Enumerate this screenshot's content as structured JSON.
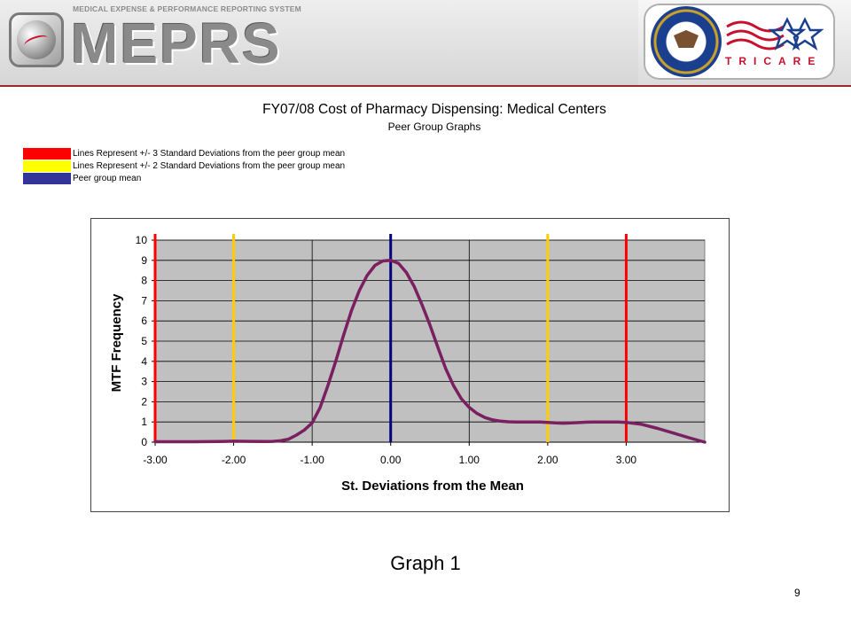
{
  "header": {
    "system_name": "MEDICAL EXPENSE & PERFORMANCE REPORTING SYSTEM",
    "acronym": "MEPRS",
    "partner_brand": "TRICARE",
    "icons": [
      "globe-icon",
      "dod-seal-icon",
      "tricare-logo-icon"
    ]
  },
  "legend": [
    {
      "label": "Lines Represent +/- 3 Standard Deviations from the peer group mean",
      "color": "#ff0000"
    },
    {
      "label": "Lines Represent +/- 2 Standard Deviations from the peer group mean",
      "color": "#ffff00"
    },
    {
      "label": "Peer group mean",
      "color": "#333399"
    }
  ],
  "chart_data": {
    "type": "line",
    "title": "FY07/08 Cost of Pharmacy Dispensing:  Medical Centers",
    "subtitle": "Peer Group Graphs",
    "xlabel": "St. Deviations from the Mean",
    "ylabel": "MTF Frequency",
    "xlim": [
      -3.0,
      4.0
    ],
    "ylim": [
      0,
      10
    ],
    "x_tick_labels": [
      "-3.00",
      "-2.00",
      "-1.00",
      "0.00",
      "1.00",
      "2.00",
      "3.00"
    ],
    "y_tick_labels": [
      "0",
      "1",
      "2",
      "3",
      "4",
      "5",
      "6",
      "7",
      "8",
      "9",
      "10"
    ],
    "grid": true,
    "plot_background": "#c0c0c0",
    "series": [
      {
        "color": "#7a2060",
        "x": [
          -3.0,
          -2.7,
          -2.5,
          -2.2,
          -2.0,
          -1.8,
          -1.6,
          -1.5,
          -1.4,
          -1.3,
          -1.2,
          -1.1,
          -1.0,
          -0.9,
          -0.8,
          -0.7,
          -0.6,
          -0.5,
          -0.4,
          -0.3,
          -0.2,
          -0.1,
          0.0,
          0.1,
          0.2,
          0.3,
          0.4,
          0.5,
          0.6,
          0.7,
          0.8,
          0.9,
          1.0,
          1.1,
          1.2,
          1.3,
          1.4,
          1.5,
          1.6,
          1.7,
          1.8,
          1.9,
          2.0,
          2.1,
          2.2,
          2.3,
          2.4,
          2.5,
          2.6,
          2.7,
          2.8,
          2.9,
          3.0,
          3.2,
          3.4,
          3.6,
          3.8,
          4.0
        ],
        "y": [
          0.02,
          0.02,
          0.02,
          0.03,
          0.05,
          0.04,
          0.03,
          0.04,
          0.07,
          0.15,
          0.35,
          0.6,
          0.95,
          1.7,
          2.8,
          4.0,
          5.3,
          6.5,
          7.5,
          8.25,
          8.75,
          8.97,
          9.0,
          8.85,
          8.4,
          7.7,
          6.8,
          5.8,
          4.7,
          3.65,
          2.8,
          2.15,
          1.72,
          1.42,
          1.22,
          1.1,
          1.04,
          1.01,
          1.0,
          1.0,
          1.0,
          1.0,
          0.98,
          0.95,
          0.94,
          0.95,
          0.97,
          0.99,
          1.0,
          1.0,
          1.0,
          1.0,
          0.98,
          0.88,
          0.68,
          0.45,
          0.22,
          0.0
        ]
      }
    ],
    "reference_lines": [
      {
        "x": -3.0,
        "color": "#ff0000"
      },
      {
        "x": -2.0,
        "color": "#ffcc00"
      },
      {
        "x": 0.0,
        "color": "#000080"
      },
      {
        "x": 2.0,
        "color": "#ffcc00"
      },
      {
        "x": 3.0,
        "color": "#ff0000"
      }
    ]
  },
  "caption": "Graph 1",
  "page_number": "9"
}
